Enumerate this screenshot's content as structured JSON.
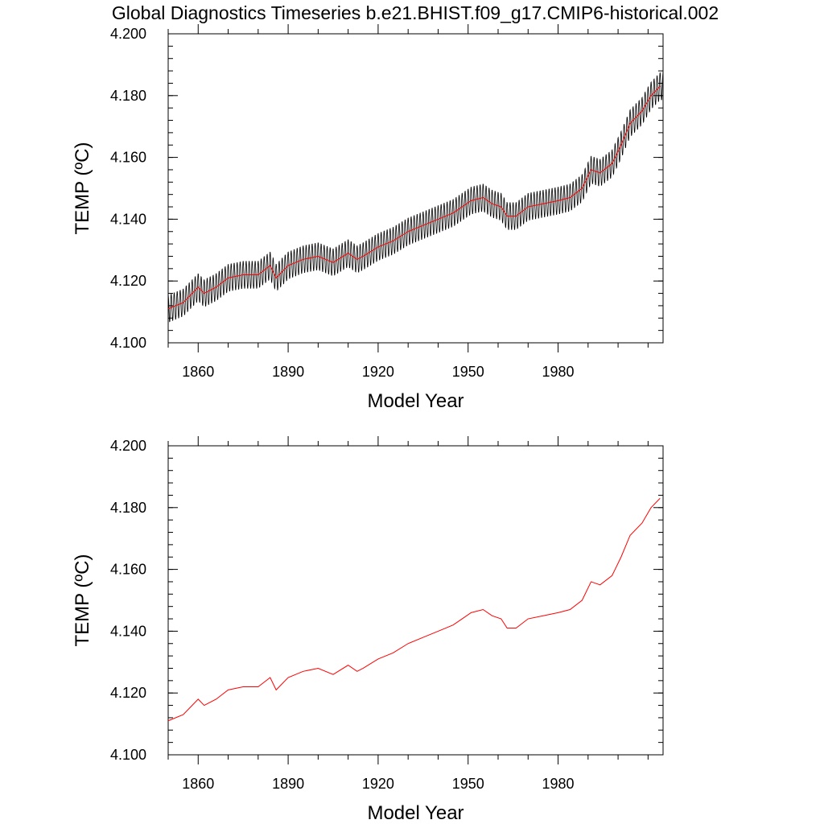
{
  "title": "Global Diagnostics Timeseries b.e21.BHIST.f09_g17.CMIP6-historical.002",
  "colors": {
    "monthly": "#000000",
    "annual": "#ff0000",
    "axes": "#000000",
    "background": "#ffffff"
  },
  "chart_data": [
    {
      "type": "line",
      "xlabel": "Model Year",
      "ylabel": "TEMP (ºC)",
      "xlim": [
        1850,
        2015
      ],
      "ylim": [
        4.1,
        4.2
      ],
      "x_ticks": [
        1860,
        1890,
        1920,
        1950,
        1980
      ],
      "x_tick_labels": [
        "1860",
        "1890",
        "1920",
        "1950",
        "1980"
      ],
      "y_ticks": [
        4.1,
        4.12,
        4.14,
        4.16,
        4.18,
        4.2
      ],
      "y_tick_labels": [
        "4.100",
        "4.120",
        "4.140",
        "4.160",
        "4.180",
        "4.200"
      ],
      "grid": false,
      "legend": "none",
      "series": [
        {
          "color": "#000000",
          "resolution": "monthly",
          "annual_cycle_half_amplitude": 0.0045,
          "start_year": 1850,
          "end_year": 2014
        },
        {
          "color": "#ff0000",
          "resolution": "annual",
          "x": [
            1850,
            1855,
            1860,
            1862,
            1866,
            1870,
            1875,
            1880,
            1884,
            1886,
            1890,
            1895,
            1900,
            1905,
            1910,
            1913,
            1915,
            1920,
            1925,
            1930,
            1935,
            1940,
            1945,
            1948,
            1951,
            1955,
            1958,
            1961,
            1963,
            1966,
            1970,
            1975,
            1980,
            1984,
            1988,
            1991,
            1994,
            1998,
            2001,
            2004,
            2008,
            2011,
            2014
          ],
          "y": [
            4.111,
            4.113,
            4.118,
            4.116,
            4.118,
            4.121,
            4.122,
            4.122,
            4.125,
            4.121,
            4.125,
            4.127,
            4.128,
            4.126,
            4.129,
            4.127,
            4.128,
            4.131,
            4.133,
            4.136,
            4.138,
            4.14,
            4.142,
            4.144,
            4.146,
            4.147,
            4.145,
            4.144,
            4.141,
            4.141,
            4.144,
            4.145,
            4.146,
            4.147,
            4.15,
            4.156,
            4.155,
            4.158,
            4.164,
            4.171,
            4.175,
            4.18,
            4.183
          ]
        }
      ]
    },
    {
      "type": "line",
      "xlabel": "Model Year",
      "ylabel": "TEMP (ºC)",
      "xlim": [
        1850,
        2015
      ],
      "ylim": [
        4.1,
        4.2
      ],
      "x_ticks": [
        1860,
        1890,
        1920,
        1950,
        1980
      ],
      "x_tick_labels": [
        "1860",
        "1890",
        "1920",
        "1950",
        "1980"
      ],
      "y_ticks": [
        4.1,
        4.12,
        4.14,
        4.16,
        4.18,
        4.2
      ],
      "y_tick_labels": [
        "4.100",
        "4.120",
        "4.140",
        "4.160",
        "4.180",
        "4.200"
      ],
      "grid": false,
      "legend": "none",
      "series": [
        {
          "color": "#ff0000",
          "resolution": "annual",
          "x": [
            1850,
            1855,
            1860,
            1862,
            1866,
            1870,
            1875,
            1880,
            1884,
            1886,
            1890,
            1895,
            1900,
            1905,
            1910,
            1913,
            1915,
            1920,
            1925,
            1930,
            1935,
            1940,
            1945,
            1948,
            1951,
            1955,
            1958,
            1961,
            1963,
            1966,
            1970,
            1975,
            1980,
            1984,
            1988,
            1991,
            1994,
            1998,
            2001,
            2004,
            2008,
            2011,
            2014
          ],
          "y": [
            4.111,
            4.113,
            4.118,
            4.116,
            4.118,
            4.121,
            4.122,
            4.122,
            4.125,
            4.121,
            4.125,
            4.127,
            4.128,
            4.126,
            4.129,
            4.127,
            4.128,
            4.131,
            4.133,
            4.136,
            4.138,
            4.14,
            4.142,
            4.144,
            4.146,
            4.147,
            4.145,
            4.144,
            4.141,
            4.141,
            4.144,
            4.145,
            4.146,
            4.147,
            4.15,
            4.156,
            4.155,
            4.158,
            4.164,
            4.171,
            4.175,
            4.18,
            4.183
          ]
        }
      ]
    }
  ]
}
